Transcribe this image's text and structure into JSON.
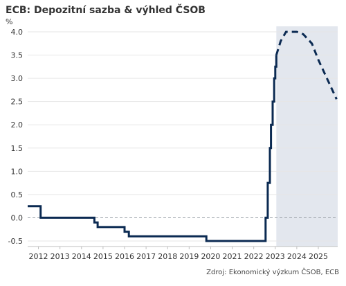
{
  "chart_data": {
    "type": "line",
    "title": "ECB: Depozitní sazba & výhled ČSOB",
    "ylabel": "%",
    "source": "Zdroj: Ekonomický výzkum ČSOB, ECB",
    "ylim": [
      -0.5,
      4.0
    ],
    "xlim": [
      2011.5,
      2025.9
    ],
    "yticks": [
      -0.5,
      0.0,
      0.5,
      1.0,
      1.5,
      2.0,
      2.5,
      3.0,
      3.5,
      4.0
    ],
    "ytick_labels": [
      "-0.5",
      "0.0",
      "0.5",
      "1.0",
      "1.5",
      "2.0",
      "2.5",
      "3.0",
      "3.5",
      "4.0"
    ],
    "xticks": [
      2012,
      2013,
      2014,
      2015,
      2016,
      2017,
      2018,
      2019,
      2020,
      2021,
      2022,
      2023,
      2024,
      2025
    ],
    "xtick_labels": [
      "2012",
      "2013",
      "2014",
      "2015",
      "2016",
      "2017",
      "2018",
      "2019",
      "2020",
      "2021",
      "2022",
      "2023",
      "2024",
      "2025"
    ],
    "zero_line": "dashed",
    "forecast_shading": [
      2023.05,
      2025.9
    ],
    "colors": {
      "line": "#0b2a52",
      "shade": "#e3e7ee",
      "zero": "#9aa0a8",
      "grid": "#e6e6e6",
      "text": "#333333"
    },
    "series": [
      {
        "style": "solid-step",
        "x": [
          2011.5,
          2012.0,
          2012.1,
          2014.5,
          2014.6,
          2014.75,
          2015.9,
          2016.0,
          2016.2,
          2019.7,
          2019.8,
          2022.55,
          2022.55,
          2022.65,
          2022.75,
          2022.8,
          2022.88,
          2022.95,
          2023.0,
          2023.05
        ],
        "y": [
          0.25,
          0.25,
          0.0,
          0.0,
          -0.1,
          -0.2,
          -0.2,
          -0.3,
          -0.4,
          -0.4,
          -0.5,
          -0.5,
          0.0,
          0.75,
          1.5,
          2.0,
          2.5,
          3.0,
          3.25,
          3.5
        ]
      },
      {
        "style": "dashed",
        "x": [
          2023.05,
          2023.25,
          2023.5,
          2024.0,
          2024.3,
          2024.7,
          2025.0,
          2025.3,
          2025.55,
          2025.85
        ],
        "y": [
          3.5,
          3.8,
          4.0,
          4.0,
          3.95,
          3.75,
          3.4,
          3.1,
          2.85,
          2.55
        ]
      }
    ]
  }
}
